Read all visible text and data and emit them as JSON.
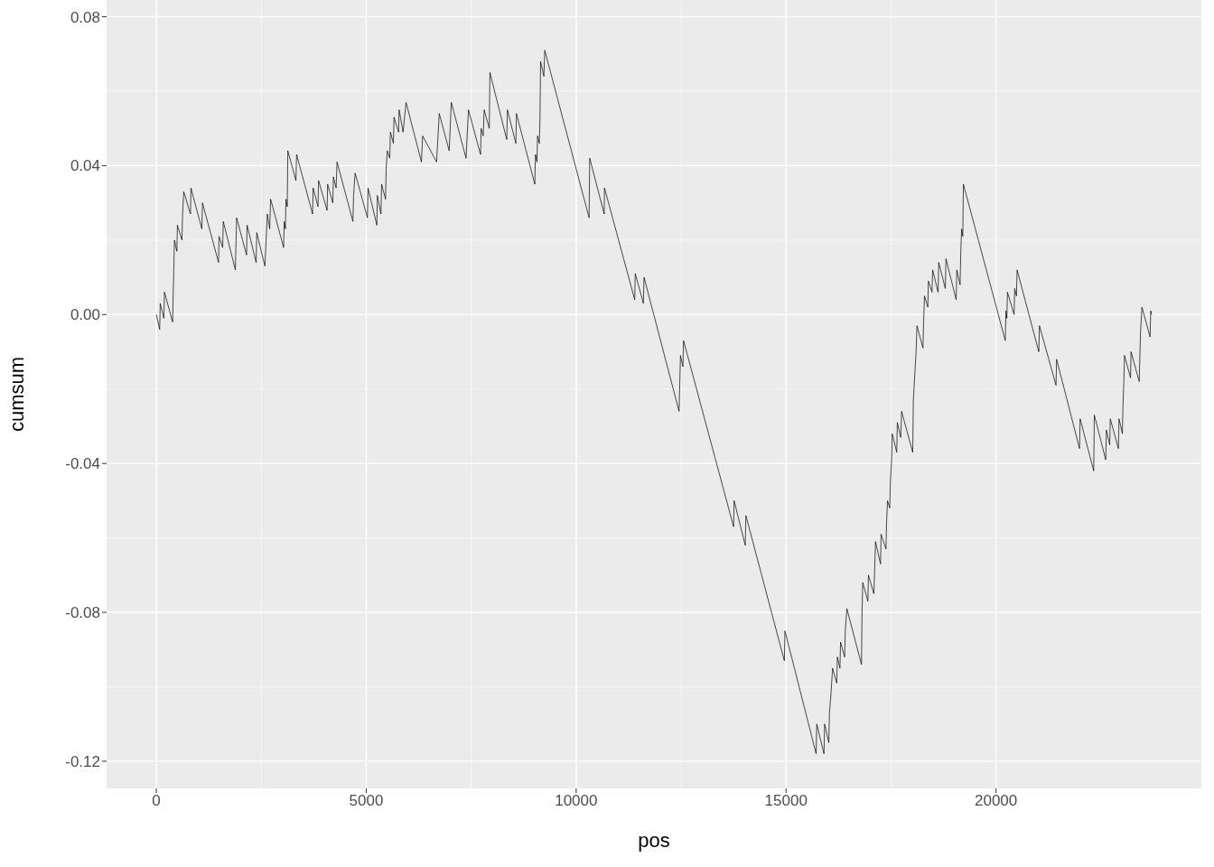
{
  "chart_data": {
    "type": "line",
    "xlabel": "pos",
    "ylabel": "cumsum",
    "color": "#000000",
    "grid": true,
    "xlim": [
      -1185,
      24892
    ],
    "ylim": [
      -0.1273,
      0.0845
    ],
    "xticks": [
      0,
      5000,
      10000,
      15000,
      20000
    ],
    "yticks": [
      -0.12,
      -0.08,
      -0.04,
      {
        "value": 0,
        "label": "0.00"
      },
      0.04,
      0.08
    ],
    "x": [
      0,
      80,
      93,
      179,
      194,
      388,
      403,
      416,
      431,
      489,
      502,
      610,
      625,
      653,
      813,
      825,
      1084,
      1099,
      1481,
      1494,
      1580,
      1595,
      1882,
      1912,
      2149,
      2162,
      2377,
      2392,
      2586,
      2644,
      2700,
      2722,
      3032,
      3045,
      3075,
      3088,
      3119,
      3132,
      3325,
      3341,
      3722,
      3735,
      3851,
      3864,
      4067,
      4080,
      4203,
      4218,
      4282,
      4304,
      4683,
      4698,
      4735,
      5028,
      5043,
      5252,
      5265,
      5351,
      5366,
      5459,
      5474,
      5502,
      5560,
      5576,
      5647,
      5662,
      5770,
      5783,
      5877,
      5948,
      6315,
      6343,
      6675,
      6739,
      6976,
      7026,
      7377,
      7435,
      7722,
      7737,
      7787,
      7808,
      7931,
      7946,
      8347,
      8362,
      8563,
      8578,
      9015,
      9030,
      9067,
      9080,
      9123,
      9138,
      9153,
      9231,
      9252,
      10308,
      10323,
      10668,
      10675,
      11395,
      11408,
      11601,
      11617,
      12451,
      12485,
      12543,
      12558,
      13750,
      13763,
      14028,
      14043,
      14959,
      14974,
      15716,
      15731,
      15903,
      15918,
      16018,
      16033,
      16069,
      16108,
      16207,
      16222,
      16283,
      16298,
      16395,
      16410,
      16449,
      16796,
      16811,
      16826,
      16949,
      16962,
      17091,
      17112,
      17130,
      17250,
      17263,
      17380,
      17393,
      17416,
      17470,
      17485,
      17515,
      17528,
      17636,
      17651,
      17731,
      17752,
      18017,
      18032,
      18067,
      18097,
      18118,
      18261,
      18276,
      18298,
      18377,
      18390,
      18476,
      18492,
      18621,
      18636,
      18793,
      18809,
      19052,
      19067,
      19145,
      19160,
      19181,
      19209,
      19224,
      20222,
      20237,
      20259,
      20274,
      20431,
      20446,
      20489,
      20503,
      21020,
      21035,
      21430,
      21444,
      21990,
      22005,
      22328,
      22343,
      22614,
      22630,
      22710,
      22723,
      22916,
      22931,
      23011,
      23024,
      23046,
      23061,
      23205,
      23218,
      23412,
      23442,
      23477,
      23671,
      23686,
      23707
    ],
    "values": [
      0,
      -0.004,
      0.003,
      -0.001,
      0.006,
      -0.002,
      0.006,
      0.012,
      0.02,
      0.017,
      0.024,
      0.02,
      0.027,
      0.033,
      0.027,
      0.034,
      0.023,
      0.03,
      0.014,
      0.021,
      0.018,
      0.025,
      0.012,
      0.026,
      0.016,
      0.024,
      0.014,
      0.022,
      0.013,
      0.027,
      0.023,
      0.031,
      0.018,
      0.025,
      0.023,
      0.031,
      0.029,
      0.044,
      0.036,
      0.043,
      0.027,
      0.034,
      0.029,
      0.036,
      0.028,
      0.035,
      0.03,
      0.037,
      0.034,
      0.041,
      0.025,
      0.032,
      0.038,
      0.026,
      0.034,
      0.024,
      0.032,
      0.027,
      0.035,
      0.031,
      0.039,
      0.044,
      0.042,
      0.049,
      0.046,
      0.053,
      0.049,
      0.055,
      0.049,
      0.057,
      0.041,
      0.048,
      0.041,
      0.054,
      0.044,
      0.057,
      0.042,
      0.055,
      0.043,
      0.05,
      0.048,
      0.055,
      0.05,
      0.065,
      0.047,
      0.055,
      0.046,
      0.054,
      0.035,
      0.043,
      0.041,
      0.048,
      0.046,
      0.053,
      0.068,
      0.064,
      0.071,
      0.026,
      0.042,
      0.027,
      0.034,
      0.004,
      0.011,
      0.003,
      0.01,
      -0.026,
      -0.011,
      -0.014,
      -0.007,
      -0.057,
      -0.05,
      -0.062,
      -0.054,
      -0.093,
      -0.085,
      -0.118,
      -0.11,
      -0.118,
      -0.11,
      -0.115,
      -0.107,
      -0.102,
      -0.095,
      -0.099,
      -0.092,
      -0.095,
      -0.088,
      -0.092,
      -0.085,
      -0.079,
      -0.094,
      -0.079,
      -0.072,
      -0.077,
      -0.07,
      -0.075,
      -0.068,
      -0.061,
      -0.067,
      -0.059,
      -0.063,
      -0.056,
      -0.05,
      -0.052,
      -0.045,
      -0.039,
      -0.032,
      -0.037,
      -0.029,
      -0.033,
      -0.026,
      -0.037,
      -0.023,
      -0.016,
      -0.01,
      -0.003,
      -0.009,
      -0.002,
      0.005,
      0.002,
      0.009,
      0.006,
      0.012,
      0.006,
      0.014,
      0.007,
      0.015,
      0.004,
      0.012,
      0.008,
      0.016,
      0.023,
      0.021,
      0.035,
      -0.007,
      0.001,
      -0.001,
      0.006,
      0,
      0.007,
      0.005,
      0.012,
      -0.01,
      -0.003,
      -0.019,
      -0.012,
      -0.036,
      -0.028,
      -0.042,
      -0.027,
      -0.039,
      -0.031,
      -0.035,
      -0.028,
      -0.036,
      -0.028,
      -0.032,
      -0.025,
      -0.018,
      -0.011,
      -0.017,
      -0.01,
      -0.018,
      -0.005,
      0.002,
      -0.006,
      0.001,
      0
    ]
  }
}
